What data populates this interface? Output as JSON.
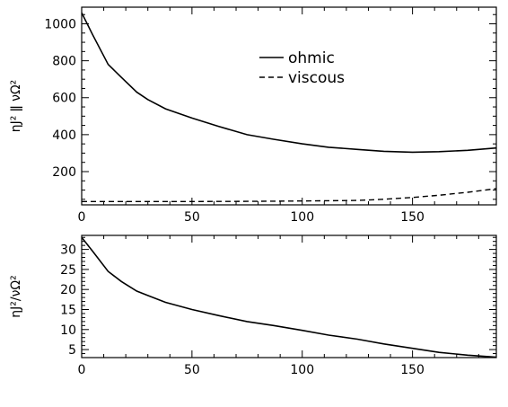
{
  "chart_data": [
    {
      "type": "line",
      "title": "",
      "xlabel": "",
      "ylabel": "ηJ² ǁ νΩ²",
      "xlim": [
        0,
        188
      ],
      "ylim": [
        20,
        1090
      ],
      "xticks": [
        0,
        50,
        100,
        150
      ],
      "yticks": [
        200,
        400,
        600,
        800,
        1000
      ],
      "legend_position": "top-center",
      "grid": false,
      "series": [
        {
          "name": "ohmic",
          "style": "solid",
          "x": [
            0,
            5,
            12,
            18,
            25,
            30,
            38,
            50,
            62,
            75,
            87,
            100,
            112,
            125,
            137,
            150,
            162,
            175,
            188
          ],
          "y": [
            1060,
            940,
            780,
            710,
            630,
            590,
            540,
            490,
            445,
            400,
            375,
            350,
            332,
            320,
            310,
            305,
            308,
            315,
            328
          ]
        },
        {
          "name": "viscous",
          "style": "dashed",
          "x": [
            0,
            25,
            50,
            75,
            100,
            125,
            137,
            150,
            162,
            175,
            188
          ],
          "y": [
            38,
            38,
            38,
            39,
            41,
            44,
            50,
            60,
            72,
            88,
            108
          ]
        }
      ]
    },
    {
      "type": "line",
      "title": "",
      "xlabel": "",
      "ylabel": "ηJ²/νΩ²",
      "xlim": [
        0,
        188
      ],
      "ylim": [
        3,
        33.5
      ],
      "xticks": [
        0,
        50,
        100,
        150
      ],
      "yticks": [
        5,
        10,
        15,
        20,
        25,
        30
      ],
      "grid": false,
      "series": [
        {
          "style": "solid",
          "x": [
            0,
            5,
            12,
            18,
            25,
            30,
            38,
            50,
            62,
            75,
            87,
            100,
            112,
            125,
            137,
            150,
            162,
            175,
            188
          ],
          "y": [
            33,
            29.5,
            24.5,
            22,
            19.6,
            18.5,
            16.8,
            15,
            13.5,
            12,
            11,
            9.8,
            8.6,
            7.6,
            6.4,
            5.3,
            4.3,
            3.6,
            3.1
          ]
        }
      ]
    }
  ]
}
